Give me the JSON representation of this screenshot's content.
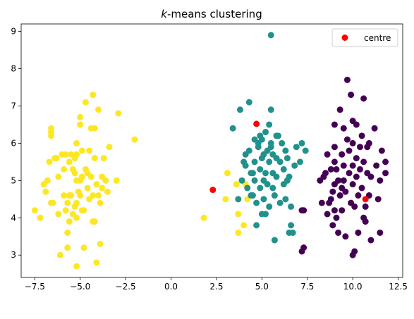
{
  "chart_data": {
    "type": "scatter",
    "title_prefix": "k",
    "title_suffix": "-means clustering",
    "xlabel": "",
    "ylabel": "",
    "xlim": [
      -8.25,
      12.75
    ],
    "ylim": [
      2.4,
      9.2
    ],
    "xticks": [
      -7.5,
      -5.0,
      -2.5,
      0.0,
      2.5,
      5.0,
      7.5,
      10.0,
      12.5
    ],
    "xtick_labels": [
      "−7.5",
      "−5.0",
      "−2.5",
      "0.0",
      "2.5",
      "5.0",
      "7.5",
      "10.0",
      "12.5"
    ],
    "yticks": [
      3,
      4,
      5,
      6,
      7,
      8,
      9
    ],
    "ytick_labels": [
      "3",
      "4",
      "5",
      "6",
      "7",
      "8",
      "9"
    ],
    "grid": false,
    "legend": {
      "position": "top-right",
      "entries": [
        {
          "label": "centre",
          "color": "#ff0000"
        }
      ]
    },
    "clusters": [
      {
        "color": "#fde725",
        "points": [
          [
            -7.5,
            4.2
          ],
          [
            -7.2,
            4.0
          ],
          [
            -7.0,
            4.9
          ],
          [
            -6.9,
            4.7
          ],
          [
            -6.8,
            5.0
          ],
          [
            -6.7,
            5.5
          ],
          [
            -6.6,
            6.4
          ],
          [
            -6.6,
            6.3
          ],
          [
            -6.6,
            6.2
          ],
          [
            -6.6,
            4.4
          ],
          [
            -6.5,
            4.4
          ],
          [
            -6.4,
            5.6
          ],
          [
            -6.3,
            5.6
          ],
          [
            -6.2,
            5.1
          ],
          [
            -6.2,
            4.1
          ],
          [
            -6.1,
            3.0
          ],
          [
            -6.0,
            5.7
          ],
          [
            -5.9,
            5.3
          ],
          [
            -5.9,
            4.6
          ],
          [
            -5.8,
            5.7
          ],
          [
            -5.8,
            4.2
          ],
          [
            -5.7,
            4.4
          ],
          [
            -5.7,
            3.6
          ],
          [
            -5.7,
            3.2
          ],
          [
            -5.6,
            5.5
          ],
          [
            -5.6,
            4.6
          ],
          [
            -5.6,
            3.9
          ],
          [
            -5.5,
            5.7
          ],
          [
            -5.5,
            4.6
          ],
          [
            -5.4,
            5.3
          ],
          [
            -5.4,
            4.1
          ],
          [
            -5.3,
            5.6
          ],
          [
            -5.3,
            5.2
          ],
          [
            -5.3,
            4.3
          ],
          [
            -5.2,
            6.0
          ],
          [
            -5.2,
            5.7
          ],
          [
            -5.2,
            5.0
          ],
          [
            -5.2,
            4.4
          ],
          [
            -5.2,
            4.0
          ],
          [
            -5.2,
            2.7
          ],
          [
            -5.1,
            4.7
          ],
          [
            -5.0,
            6.7
          ],
          [
            -5.0,
            6.5
          ],
          [
            -5.0,
            5.0
          ],
          [
            -5.0,
            4.6
          ],
          [
            -4.9,
            5.8
          ],
          [
            -4.9,
            5.1
          ],
          [
            -4.9,
            4.2
          ],
          [
            -4.8,
            4.2
          ],
          [
            -4.8,
            3.2
          ],
          [
            -4.7,
            7.1
          ],
          [
            -4.7,
            5.3
          ],
          [
            -4.6,
            5.2
          ],
          [
            -4.6,
            4.8
          ],
          [
            -4.5,
            5.8
          ],
          [
            -4.5,
            4.5
          ],
          [
            -4.4,
            6.4
          ],
          [
            -4.4,
            5.1
          ],
          [
            -4.3,
            7.3
          ],
          [
            -4.3,
            4.6
          ],
          [
            -4.3,
            3.9
          ],
          [
            -4.2,
            6.4
          ],
          [
            -4.2,
            5.6
          ],
          [
            -4.2,
            3.9
          ],
          [
            -4.1,
            4.9
          ],
          [
            -4.1,
            2.8
          ],
          [
            -4.0,
            6.9
          ],
          [
            -4.0,
            4.6
          ],
          [
            -3.9,
            4.4
          ],
          [
            -3.9,
            3.3
          ],
          [
            -3.8,
            5.1
          ],
          [
            -3.8,
            4.8
          ],
          [
            -3.7,
            5.6
          ],
          [
            -3.6,
            5.0
          ],
          [
            -3.5,
            4.7
          ],
          [
            -3.4,
            5.9
          ],
          [
            -3.0,
            5.0
          ],
          [
            -2.9,
            6.8
          ],
          [
            -2.0,
            6.1
          ],
          [
            1.8,
            4.0
          ],
          [
            3.0,
            4.5
          ],
          [
            3.1,
            5.2
          ],
          [
            3.6,
            4.9
          ],
          [
            3.7,
            3.6
          ],
          [
            3.7,
            4.1
          ],
          [
            4.0,
            3.8
          ],
          [
            4.1,
            4.9
          ],
          [
            4.2,
            4.5
          ]
        ]
      },
      {
        "color": "#21918c",
        "points": [
          [
            3.4,
            6.4
          ],
          [
            3.7,
            4.5
          ],
          [
            3.8,
            6.9
          ],
          [
            3.9,
            5.0
          ],
          [
            4.0,
            5.5
          ],
          [
            4.1,
            5.7
          ],
          [
            4.1,
            5.4
          ],
          [
            4.2,
            4.8
          ],
          [
            4.3,
            7.1
          ],
          [
            4.3,
            5.8
          ],
          [
            4.4,
            5.2
          ],
          [
            4.4,
            4.6
          ],
          [
            4.5,
            5.2
          ],
          [
            4.5,
            4.6
          ],
          [
            4.6,
            6.1
          ],
          [
            4.6,
            5.5
          ],
          [
            4.6,
            5.0
          ],
          [
            4.7,
            4.4
          ],
          [
            4.7,
            3.8
          ],
          [
            4.8,
            6.0
          ],
          [
            4.8,
            5.9
          ],
          [
            4.9,
            5.3
          ],
          [
            4.9,
            4.8
          ],
          [
            5.0,
            6.1
          ],
          [
            5.0,
            5.6
          ],
          [
            5.0,
            4.1
          ],
          [
            5.1,
            5.7
          ],
          [
            5.1,
            5.0
          ],
          [
            5.1,
            4.5
          ],
          [
            5.2,
            6.3
          ],
          [
            5.2,
            5.2
          ],
          [
            5.3,
            5.8
          ],
          [
            5.3,
            4.9
          ],
          [
            5.4,
            6.5
          ],
          [
            5.4,
            5.5
          ],
          [
            5.4,
            4.3
          ],
          [
            5.5,
            8.9
          ],
          [
            5.5,
            6.9
          ],
          [
            5.5,
            6.0
          ],
          [
            5.5,
            5.9
          ],
          [
            5.6,
            5.7
          ],
          [
            5.6,
            5.2
          ],
          [
            5.6,
            4.8
          ],
          [
            5.7,
            4.6
          ],
          [
            5.7,
            3.4
          ],
          [
            5.8,
            6.2
          ],
          [
            5.8,
            5.6
          ],
          [
            5.8,
            5.1
          ],
          [
            5.9,
            6.2
          ],
          [
            6.0,
            5.5
          ],
          [
            6.0,
            4.4
          ],
          [
            6.1,
            6.0
          ],
          [
            6.2,
            5.3
          ],
          [
            6.2,
            4.9
          ],
          [
            6.3,
            5.8
          ],
          [
            6.3,
            4.5
          ],
          [
            6.4,
            5.6
          ],
          [
            6.4,
            5.0
          ],
          [
            6.5,
            3.6
          ],
          [
            6.5,
            5.1
          ],
          [
            6.6,
            4.3
          ],
          [
            6.6,
            3.8
          ],
          [
            6.7,
            3.6
          ],
          [
            6.8,
            5.4
          ],
          [
            6.9,
            5.9
          ],
          [
            7.1,
            5.5
          ],
          [
            7.2,
            6.0
          ],
          [
            7.4,
            5.8
          ],
          [
            5.2,
            4.1
          ],
          [
            4.9,
            6.2
          ]
        ]
      },
      {
        "color": "#440154",
        "points": [
          [
            7.2,
            4.2
          ],
          [
            7.2,
            3.1
          ],
          [
            7.3,
            4.2
          ],
          [
            7.3,
            3.2
          ],
          [
            8.2,
            5.0
          ],
          [
            8.3,
            4.4
          ],
          [
            8.4,
            5.1
          ],
          [
            8.5,
            5.2
          ],
          [
            8.6,
            4.1
          ],
          [
            8.6,
            5.7
          ],
          [
            8.7,
            4.4
          ],
          [
            8.8,
            5.3
          ],
          [
            8.8,
            4.5
          ],
          [
            8.9,
            4.7
          ],
          [
            8.9,
            3.8
          ],
          [
            9.0,
            6.5
          ],
          [
            9.0,
            5.9
          ],
          [
            9.0,
            5.5
          ],
          [
            9.0,
            4.9
          ],
          [
            9.1,
            5.3
          ],
          [
            9.1,
            4.0
          ],
          [
            9.2,
            5.0
          ],
          [
            9.2,
            3.6
          ],
          [
            9.3,
            6.9
          ],
          [
            9.3,
            4.6
          ],
          [
            9.4,
            5.7
          ],
          [
            9.4,
            4.2
          ],
          [
            9.5,
            6.4
          ],
          [
            9.5,
            5.4
          ],
          [
            9.5,
            5.0
          ],
          [
            9.6,
            4.7
          ],
          [
            9.6,
            3.5
          ],
          [
            9.7,
            7.7
          ],
          [
            9.7,
            6.1
          ],
          [
            9.8,
            5.8
          ],
          [
            9.8,
            5.2
          ],
          [
            9.9,
            4.4
          ],
          [
            10.0,
            6.6
          ],
          [
            10.0,
            6.0
          ],
          [
            10.0,
            5.4
          ],
          [
            10.0,
            4.9
          ],
          [
            10.0,
            3.0
          ],
          [
            10.1,
            4.3
          ],
          [
            10.1,
            3.1
          ],
          [
            10.2,
            6.5
          ],
          [
            10.2,
            5.6
          ],
          [
            10.2,
            5.1
          ],
          [
            10.3,
            4.6
          ],
          [
            10.3,
            3.6
          ],
          [
            10.4,
            5.9
          ],
          [
            10.4,
            5.3
          ],
          [
            10.5,
            6.2
          ],
          [
            10.5,
            4.8
          ],
          [
            10.6,
            7.2
          ],
          [
            10.6,
            5.5
          ],
          [
            10.7,
            4.3
          ],
          [
            10.7,
            3.9
          ],
          [
            10.8,
            5.9
          ],
          [
            10.8,
            5.2
          ],
          [
            10.9,
            6.0
          ],
          [
            10.9,
            4.6
          ],
          [
            11.0,
            5.1
          ],
          [
            11.0,
            3.4
          ],
          [
            11.2,
            6.4
          ],
          [
            11.3,
            5.4
          ],
          [
            11.4,
            4.5
          ],
          [
            11.5,
            5.0
          ],
          [
            11.5,
            3.6
          ],
          [
            11.6,
            5.8
          ],
          [
            11.8,
            5.5
          ],
          [
            11.8,
            5.2
          ],
          [
            9.9,
            7.3
          ],
          [
            9.4,
            4.8
          ],
          [
            10.6,
            4.0
          ],
          [
            9.0,
            4.2
          ]
        ]
      }
    ],
    "centres": [
      [
        2.3,
        4.75
      ],
      [
        4.7,
        6.52
      ],
      [
        10.7,
        4.5
      ]
    ],
    "centre_color": "#ff0000"
  }
}
